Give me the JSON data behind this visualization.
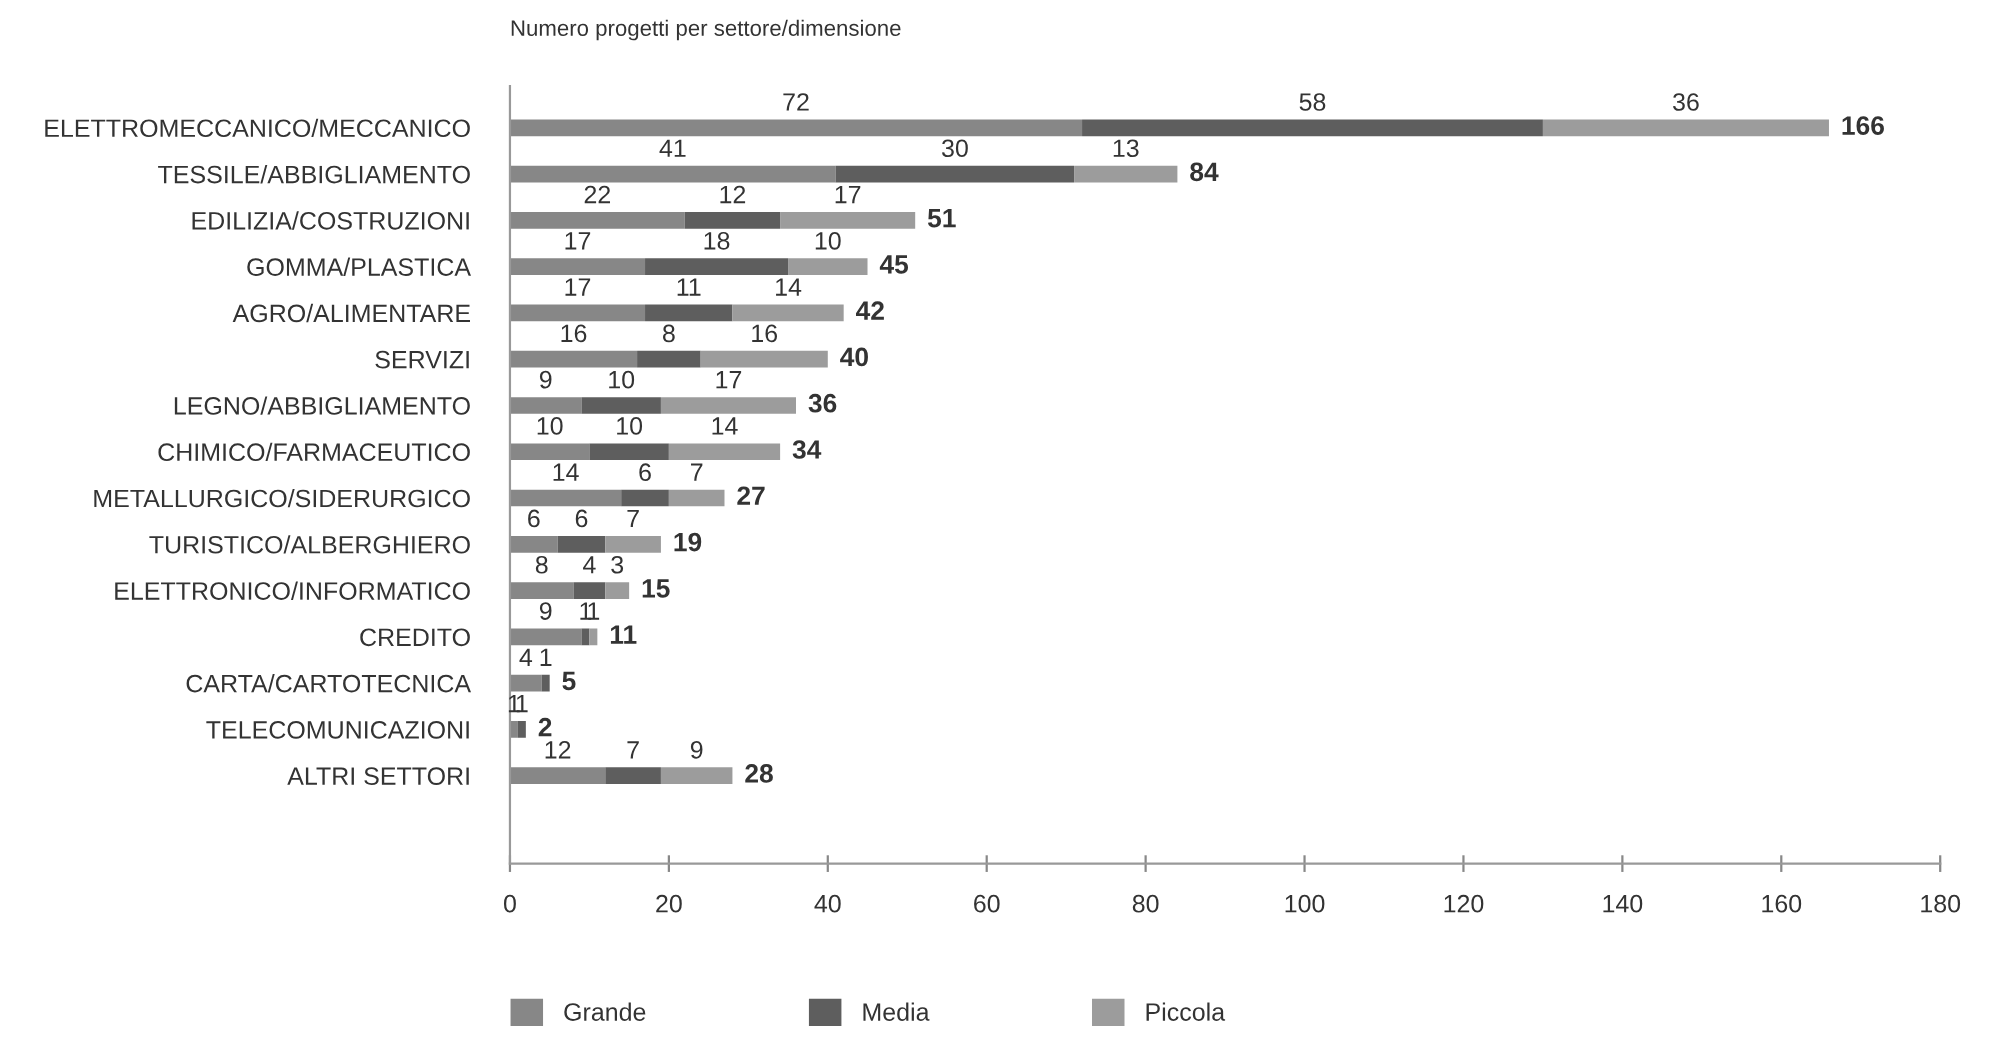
{
  "chart_data": {
    "type": "bar",
    "orientation": "horizontal",
    "stacked": true,
    "title": "Numero progetti per settore/dimensione",
    "categories": [
      "ELETTROMECCANICO/MECCANICO",
      "TESSILE/ABBIGLIAMENTO",
      "EDILIZIA/COSTRUZIONI",
      "GOMMA/PLASTICA",
      "AGRO/ALIMENTARE",
      "SERVIZI",
      "LEGNO/ABBIGLIAMENTO",
      "CHIMICO/FARMACEUTICO",
      "METALLURGICO/SIDERURGICO",
      "TURISTICO/ALBERGHIERO",
      "ELETTRONICO/INFORMATICO",
      "CREDITO",
      "CARTA/CARTOTECNICA",
      "TELECOMUNICAZIONI",
      "ALTRI SETTORI"
    ],
    "series": [
      {
        "name": "Grande",
        "color": "#878787",
        "values": [
          72,
          41,
          22,
          17,
          17,
          16,
          9,
          10,
          14,
          6,
          8,
          9,
          4,
          1,
          12
        ],
        "value_labels": [
          "72",
          "41",
          "22",
          "17",
          "17",
          "16",
          "9",
          "10",
          "14",
          "6",
          "8",
          "9",
          "4",
          "1",
          "12"
        ]
      },
      {
        "name": "Media",
        "color": "#5e5e5e",
        "values": [
          58,
          30,
          12,
          18,
          11,
          8,
          10,
          10,
          6,
          6,
          4,
          1,
          1,
          1,
          7
        ],
        "value_labels": [
          "58",
          "30",
          "12",
          "18",
          "11",
          "8",
          "10",
          "10",
          "6",
          "6",
          "4",
          "1",
          "1",
          "1",
          "7"
        ]
      },
      {
        "name": "Piccola",
        "color": "#9c9c9c",
        "values": [
          36,
          13,
          17,
          10,
          14,
          16,
          17,
          14,
          7,
          7,
          3,
          1,
          null,
          null,
          9
        ],
        "value_labels": [
          "36",
          "13",
          "17",
          "10",
          "14",
          "16",
          "17",
          "14",
          "7",
          "7",
          "3",
          "1",
          null,
          null,
          "9"
        ]
      }
    ],
    "totals": [
      "166",
      "84",
      "51",
      "45",
      "42",
      "40",
      "36",
      "34",
      "27",
      "19",
      "15",
      "11",
      "5",
      "2",
      "28"
    ],
    "xlim": [
      0,
      180
    ],
    "xticks": [
      0,
      20,
      40,
      60,
      80,
      100,
      120,
      140,
      160,
      180
    ],
    "legend": "bottom"
  }
}
